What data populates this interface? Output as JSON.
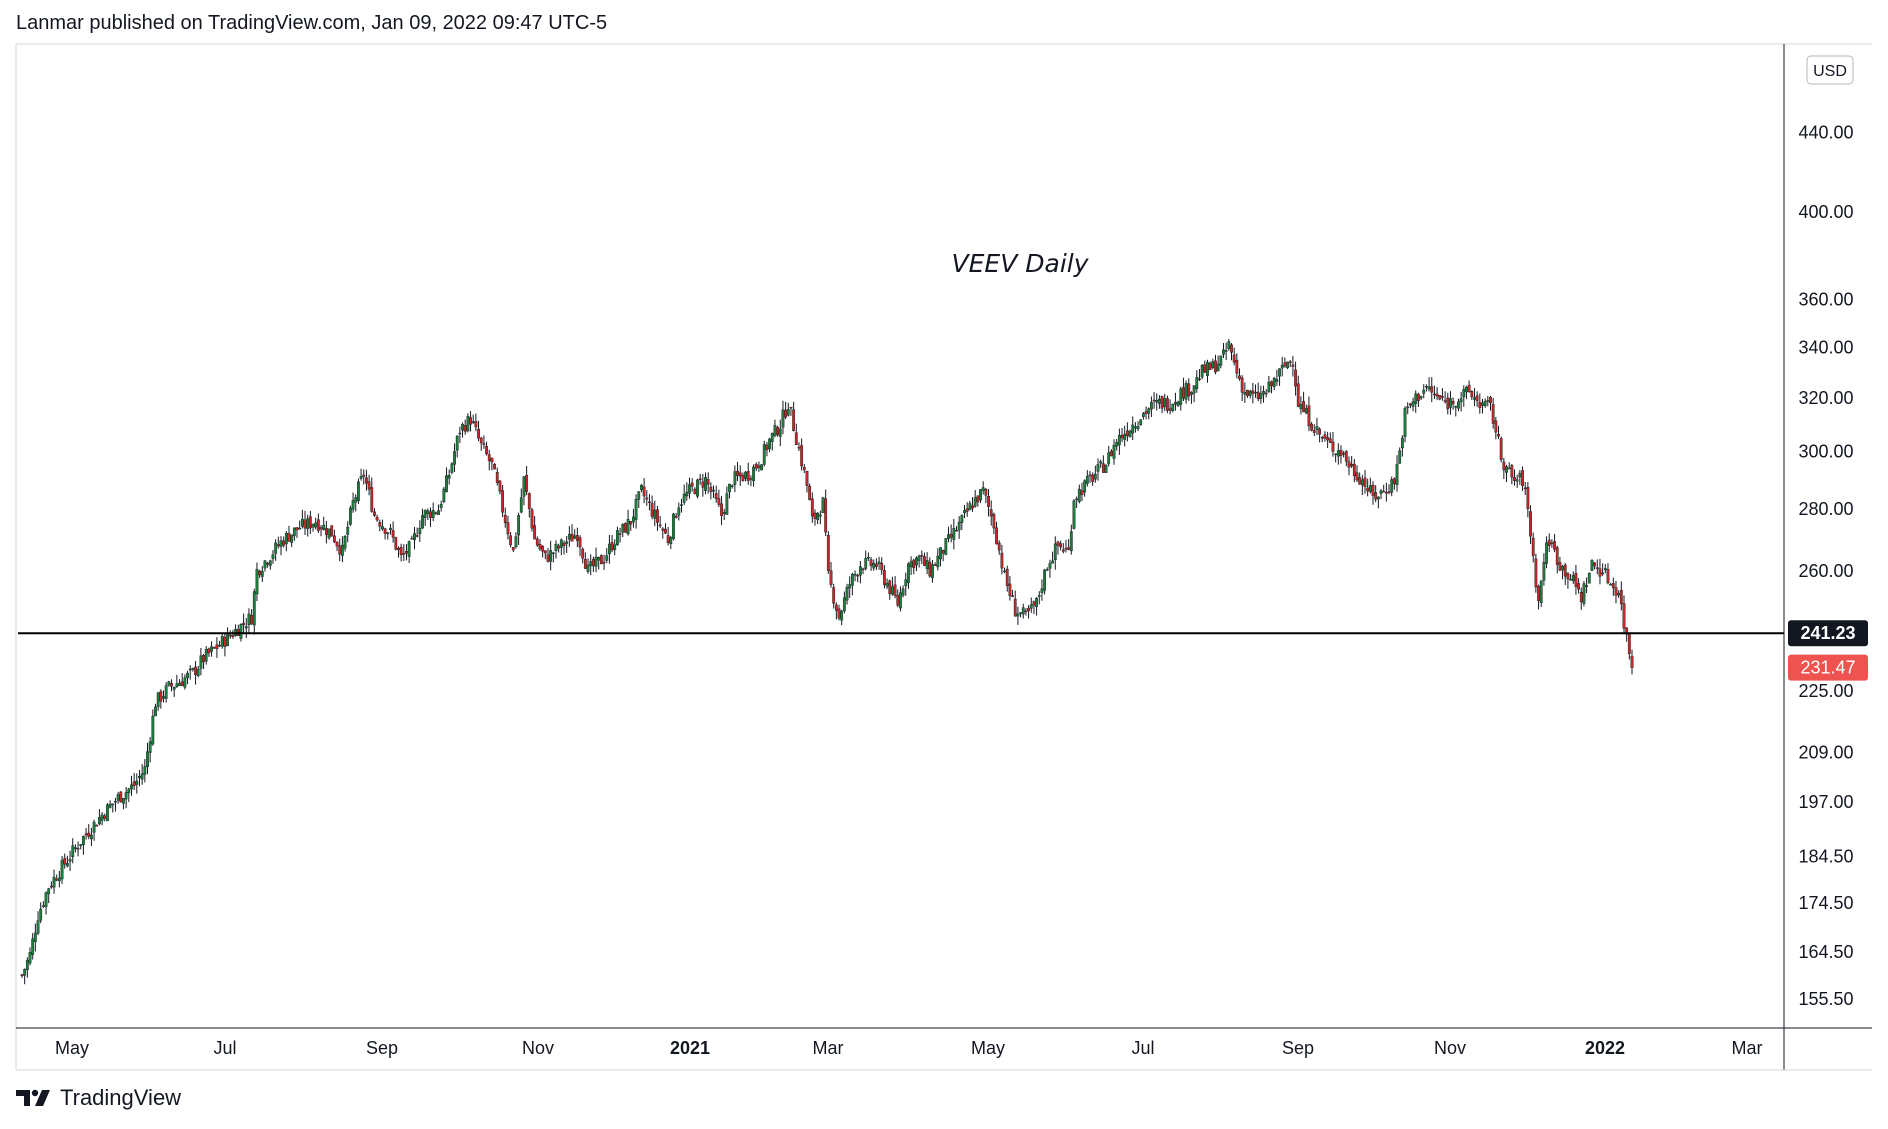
{
  "header": {
    "text": "Lanmar published on TradingView.com, Jan 09, 2022 09:47 UTC-5"
  },
  "footer": {
    "brand": "TradingView"
  },
  "colors": {
    "up": "#26a69a",
    "down": "#ef5350",
    "candle_up_fill": "#1e7d3a",
    "candle_down_fill": "#c62828",
    "support_line": "#000000",
    "grid_border": "#d1d4dc"
  },
  "chart_data": {
    "type": "candlestick",
    "title": "VEEV Daily",
    "symbol": "VEEV",
    "interval": "Daily",
    "currency": "USD",
    "scale": "log",
    "ylim": [
      152,
      480
    ],
    "y_ticks": [
      "440.00",
      "400.00",
      "360.00",
      "340.00",
      "320.00",
      "300.00",
      "280.00",
      "260.00",
      "241.23",
      "231.47",
      "225.00",
      "209.00",
      "197.00",
      "184.50",
      "174.50",
      "164.50",
      "155.50"
    ],
    "x_ticks": [
      "May",
      "Jul",
      "Sep",
      "Nov",
      "2021",
      "Mar",
      "May",
      "Jul",
      "Sep",
      "Nov",
      "2022",
      "Mar"
    ],
    "x_ticks_bold": [
      "2021",
      "2022"
    ],
    "horizontal_line": {
      "value": 241.23,
      "label": "241.23"
    },
    "last_price": {
      "value": 231.47,
      "label": "231.47"
    },
    "price_path": [
      [
        0,
        160
      ],
      [
        3,
        164
      ],
      [
        6,
        172
      ],
      [
        10,
        178
      ],
      [
        16,
        183
      ],
      [
        22,
        188
      ],
      [
        30,
        194
      ],
      [
        36,
        198
      ],
      [
        42,
        201
      ],
      [
        46,
        205
      ],
      [
        50,
        222
      ],
      [
        55,
        226
      ],
      [
        60,
        228
      ],
      [
        64,
        230
      ],
      [
        68,
        234
      ],
      [
        74,
        238
      ],
      [
        80,
        242
      ],
      [
        86,
        246
      ],
      [
        88,
        260
      ],
      [
        94,
        266
      ],
      [
        98,
        270
      ],
      [
        104,
        274
      ],
      [
        110,
        276
      ],
      [
        116,
        272
      ],
      [
        120,
        266
      ],
      [
        124,
        282
      ],
      [
        128,
        292
      ],
      [
        132,
        278
      ],
      [
        138,
        272
      ],
      [
        142,
        264
      ],
      [
        146,
        268
      ],
      [
        150,
        278
      ],
      [
        156,
        280
      ],
      [
        160,
        292
      ],
      [
        164,
        308
      ],
      [
        168,
        312
      ],
      [
        172,
        302
      ],
      [
        176,
        295
      ],
      [
        180,
        280
      ],
      [
        184,
        266
      ],
      [
        188,
        290
      ],
      [
        192,
        270
      ],
      [
        196,
        264
      ],
      [
        202,
        268
      ],
      [
        208,
        272
      ],
      [
        212,
        260
      ],
      [
        218,
        264
      ],
      [
        222,
        270
      ],
      [
        228,
        276
      ],
      [
        232,
        286
      ],
      [
        238,
        276
      ],
      [
        242,
        270
      ],
      [
        246,
        282
      ],
      [
        250,
        286
      ],
      [
        256,
        290
      ],
      [
        262,
        278
      ],
      [
        266,
        290
      ],
      [
        272,
        292
      ],
      [
        276,
        296
      ],
      [
        280,
        304
      ],
      [
        284,
        310
      ],
      [
        287,
        318
      ],
      [
        290,
        305
      ],
      [
        294,
        288
      ],
      [
        296,
        276
      ],
      [
        300,
        282
      ],
      [
        302,
        258
      ],
      [
        306,
        246
      ],
      [
        310,
        256
      ],
      [
        314,
        262
      ],
      [
        320,
        262
      ],
      [
        324,
        256
      ],
      [
        328,
        250
      ],
      [
        332,
        262
      ],
      [
        336,
        264
      ],
      [
        340,
        260
      ],
      [
        346,
        268
      ],
      [
        352,
        276
      ],
      [
        356,
        282
      ],
      [
        360,
        286
      ],
      [
        364,
        275
      ],
      [
        368,
        258
      ],
      [
        372,
        248
      ],
      [
        376,
        246
      ],
      [
        380,
        250
      ],
      [
        384,
        262
      ],
      [
        388,
        268
      ],
      [
        392,
        266
      ],
      [
        394,
        284
      ],
      [
        398,
        288
      ],
      [
        402,
        292
      ],
      [
        406,
        296
      ],
      [
        410,
        304
      ],
      [
        414,
        308
      ],
      [
        418,
        312
      ],
      [
        422,
        316
      ],
      [
        426,
        318
      ],
      [
        430,
        318
      ],
      [
        434,
        322
      ],
      [
        438,
        324
      ],
      [
        442,
        330
      ],
      [
        446,
        332
      ],
      [
        450,
        336
      ],
      [
        452,
        341
      ],
      [
        455,
        330
      ],
      [
        458,
        322
      ],
      [
        462,
        320
      ],
      [
        466,
        322
      ],
      [
        470,
        328
      ],
      [
        474,
        334
      ],
      [
        476,
        335
      ],
      [
        478,
        318
      ],
      [
        482,
        312
      ],
      [
        486,
        306
      ],
      [
        490,
        302
      ],
      [
        494,
        300
      ],
      [
        498,
        294
      ],
      [
        502,
        290
      ],
      [
        506,
        284
      ],
      [
        510,
        286
      ],
      [
        514,
        290
      ],
      [
        516,
        300
      ],
      [
        518,
        314
      ],
      [
        522,
        320
      ],
      [
        526,
        324
      ],
      [
        530,
        320
      ],
      [
        534,
        318
      ],
      [
        538,
        320
      ],
      [
        542,
        322
      ],
      [
        546,
        318
      ],
      [
        550,
        316
      ],
      [
        552,
        308
      ],
      [
        554,
        298
      ],
      [
        558,
        290
      ],
      [
        562,
        290
      ],
      [
        564,
        280
      ],
      [
        566,
        264
      ],
      [
        568,
        250
      ],
      [
        570,
        264
      ],
      [
        572,
        270
      ],
      [
        574,
        266
      ],
      [
        576,
        262
      ],
      [
        580,
        258
      ],
      [
        584,
        252
      ],
      [
        588,
        262
      ],
      [
        592,
        260
      ],
      [
        596,
        255
      ],
      [
        598,
        254
      ],
      [
        600,
        244
      ],
      [
        602,
        236
      ],
      [
        603,
        231.47
      ]
    ],
    "price_path_x_range": [
      0,
      603
    ]
  }
}
